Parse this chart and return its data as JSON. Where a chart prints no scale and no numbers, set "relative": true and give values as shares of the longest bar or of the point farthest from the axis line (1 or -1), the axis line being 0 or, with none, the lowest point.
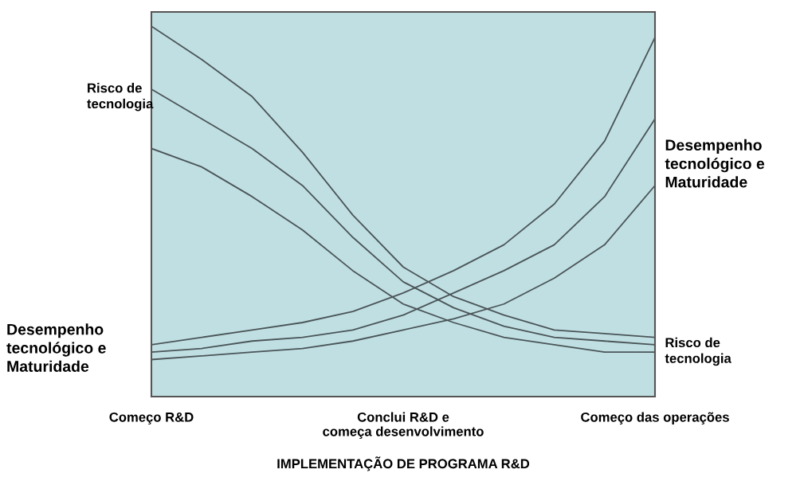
{
  "chart_data": {
    "type": "line",
    "relative": true,
    "xlabel": "IMPLEMENTAÇÃO DE PROGRAMA R&D",
    "categories": [
      "Começo R&D",
      null,
      null,
      null,
      null,
      "Conclui R&D e\ncomeça desenvolvimento",
      null,
      null,
      null,
      null,
      "Começo das operações"
    ],
    "series": [
      {
        "color": "#4a5558",
        "values": [
          1,
          0.91,
          0.81,
          0.66,
          0.49,
          0.35,
          0.27,
          0.22,
          0.18,
          0.17,
          0.16
        ]
      },
      {
        "color": "#4a5558",
        "values": [
          0.83,
          0.75,
          0.67,
          0.57,
          0.43,
          0.31,
          0.24,
          0.19,
          0.16,
          0.15,
          0.14
        ]
      },
      {
        "color": "#4a5558",
        "values": [
          0.67,
          0.62,
          0.54,
          0.45,
          0.34,
          0.25,
          0.2,
          0.16,
          0.14,
          0.12,
          0.12
        ]
      },
      {
        "color": "#4a5558",
        "values": [
          0.14,
          0.16,
          0.18,
          0.2,
          0.23,
          0.28,
          0.34,
          0.41,
          0.52,
          0.69,
          0.97
        ]
      },
      {
        "color": "#4a5558",
        "values": [
          0.12,
          0.13,
          0.15,
          0.16,
          0.18,
          0.22,
          0.28,
          0.34,
          0.41,
          0.54,
          0.75
        ]
      },
      {
        "color": "#4a5558",
        "values": [
          0.1,
          0.11,
          0.12,
          0.13,
          0.15,
          0.18,
          0.21,
          0.25,
          0.32,
          0.41,
          0.57
        ]
      }
    ],
    "annotations": [
      "Risco de\ntecnologia",
      "Desempenho\ntecnológico e\nMaturidade",
      "Desempenho\ntecnológico e\nMaturidade",
      "Risco de\ntecnologia"
    ],
    "marker": "none",
    "line_style": "solid"
  }
}
